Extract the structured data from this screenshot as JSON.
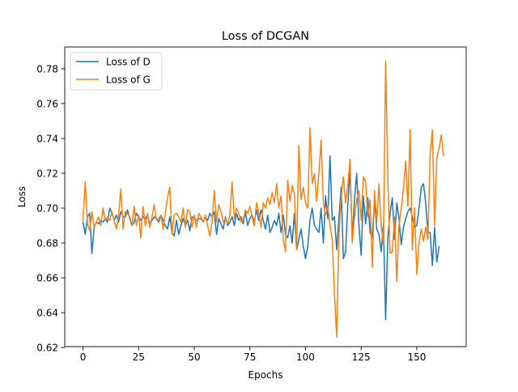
{
  "chart_data": {
    "type": "line",
    "title": "Loss of DCGAN",
    "xlabel": "Epochs",
    "ylabel": "Loss",
    "xlim": [
      -8.2,
      172.2
    ],
    "ylim": [
      0.6205,
      0.7925
    ],
    "xticks": [
      0,
      25,
      50,
      75,
      100,
      125,
      150
    ],
    "yticks": [
      0.62,
      0.64,
      0.66,
      0.68,
      0.7,
      0.72,
      0.74,
      0.76,
      0.78
    ],
    "ytick_labels": [
      "0.62",
      "0.64",
      "0.66",
      "0.68",
      "0.70",
      "0.72",
      "0.74",
      "0.76",
      "0.78"
    ],
    "grid": false,
    "legend_position": "top-left",
    "series": [
      {
        "name": "Loss of D",
        "color": "#1f77b4",
        "values": [
          0.692,
          0.685,
          0.695,
          0.697,
          0.674,
          0.689,
          0.692,
          0.691,
          0.693,
          0.692,
          0.694,
          0.692,
          0.7,
          0.697,
          0.693,
          0.696,
          0.692,
          0.698,
          0.695,
          0.695,
          0.699,
          0.694,
          0.69,
          0.692,
          0.697,
          0.695,
          0.693,
          0.695,
          0.694,
          0.696,
          0.691,
          0.693,
          0.695,
          0.694,
          0.692,
          0.696,
          0.693,
          0.69,
          0.688,
          0.695,
          0.686,
          0.684,
          0.693,
          0.685,
          0.69,
          0.694,
          0.69,
          0.693,
          0.687,
          0.695,
          0.694,
          0.693,
          0.694,
          0.694,
          0.692,
          0.695,
          0.693,
          0.697,
          0.695,
          0.698,
          0.685,
          0.694,
          0.691,
          0.688,
          0.695,
          0.69,
          0.692,
          0.695,
          0.69,
          0.697,
          0.693,
          0.695,
          0.691,
          0.698,
          0.69,
          0.694,
          0.696,
          0.692,
          0.699,
          0.693,
          0.699,
          0.693,
          0.688,
          0.696,
          0.686,
          0.689,
          0.693,
          0.69,
          0.697,
          0.686,
          0.696,
          0.685,
          0.683,
          0.69,
          0.68,
          0.697,
          0.676,
          0.682,
          0.688,
          0.678,
          0.671,
          0.678,
          0.693,
          0.7,
          0.69,
          0.688,
          0.686,
          0.7,
          0.68,
          0.707,
          0.694,
          0.73,
          0.693,
          0.695,
          0.676,
          0.694,
          0.712,
          0.671,
          0.675,
          0.702,
          0.722,
          0.682,
          0.705,
          0.72,
          0.69,
          0.673,
          0.707,
          0.691,
          0.706,
          0.686,
          0.683,
          0.705,
          0.688,
          0.685,
          0.675,
          0.691,
          0.636,
          0.683,
          0.697,
          0.706,
          0.682,
          0.703,
          0.694,
          0.679,
          0.689,
          0.694,
          0.698,
          0.7,
          0.695,
          0.689,
          0.69,
          0.7,
          0.712,
          0.714,
          0.703,
          0.686,
          0.686,
          0.667,
          0.689,
          0.669,
          0.678
        ]
      },
      {
        "name": "Loss of G",
        "color": "#ff7f0e",
        "values": [
          0.693,
          0.715,
          0.691,
          0.687,
          0.698,
          0.689,
          0.692,
          0.695,
          0.69,
          0.7,
          0.693,
          0.695,
          0.693,
          0.698,
          0.693,
          0.688,
          0.696,
          0.711,
          0.688,
          0.698,
          0.697,
          0.695,
          0.69,
          0.701,
          0.69,
          0.696,
          0.683,
          0.701,
          0.69,
          0.697,
          0.689,
          0.695,
          0.702,
          0.693,
          0.694,
          0.696,
          0.688,
          0.697,
          0.706,
          0.712,
          0.685,
          0.696,
          0.697,
          0.695,
          0.692,
          0.7,
          0.689,
          0.699,
          0.698,
          0.689,
          0.696,
          0.689,
          0.697,
          0.695,
          0.692,
          0.696,
          0.69,
          0.684,
          0.692,
          0.71,
          0.692,
          0.702,
          0.698,
          0.692,
          0.694,
          0.691,
          0.696,
          0.715,
          0.694,
          0.7,
          0.697,
          0.692,
          0.693,
          0.699,
          0.697,
          0.701,
          0.695,
          0.69,
          0.703,
          0.697,
          0.689,
          0.703,
          0.7,
          0.706,
          0.702,
          0.709,
          0.703,
          0.714,
          0.7,
          0.707,
          0.682,
          0.675,
          0.716,
          0.704,
          0.713,
          0.708,
          0.676,
          0.736,
          0.705,
          0.712,
          0.703,
          0.7,
          0.746,
          0.714,
          0.72,
          0.704,
          0.72,
          0.739,
          0.703,
          0.696,
          0.701,
          0.69,
          0.682,
          0.651,
          0.626,
          0.684,
          0.706,
          0.718,
          0.703,
          0.713,
          0.728,
          0.68,
          0.695,
          0.705,
          0.71,
          0.693,
          0.718,
          0.715,
          0.695,
          0.705,
          0.666,
          0.71,
          0.692,
          0.714,
          0.69,
          0.679,
          0.784,
          0.716,
          0.674,
          0.675,
          0.695,
          0.658,
          0.69,
          0.7,
          0.711,
          0.727,
          0.701,
          0.745,
          0.676,
          0.7,
          0.662,
          0.68,
          0.688,
          0.681,
          0.689,
          0.682,
          0.731,
          0.745,
          0.69,
          0.729,
          0.734,
          0.742,
          0.73
        ]
      }
    ]
  }
}
